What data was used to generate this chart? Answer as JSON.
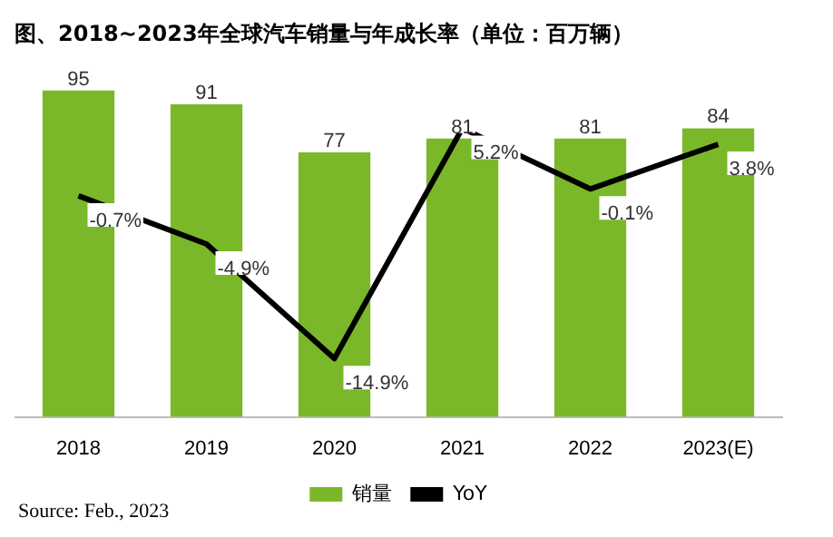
{
  "chart_data": {
    "type": "bar",
    "title": "图、2018~2023年全球汽车销量与年成长率（单位：百万辆）",
    "categories": [
      "2018",
      "2019",
      "2020",
      "2021",
      "2022",
      "2023(E)"
    ],
    "series": [
      {
        "name": "销量",
        "color": "#7ab829",
        "values": [
          95,
          91,
          77,
          81,
          81,
          84
        ]
      },
      {
        "name": "YoY",
        "type": "line",
        "axis": "y2",
        "color": "#000000",
        "values": [
          -0.7,
          -4.9,
          -14.9,
          5.2,
          -0.1,
          3.8
        ],
        "value_labels": [
          "-0.7%",
          "-4.9%",
          "-14.9%",
          "5.2%",
          "-0.1%",
          "3.8%"
        ]
      }
    ],
    "data_labels": true,
    "legend": "bottom",
    "tick_labels": "x",
    "grid": false,
    "marker": "none",
    "annotations": [
      "Source: Feb., 2023"
    ]
  }
}
